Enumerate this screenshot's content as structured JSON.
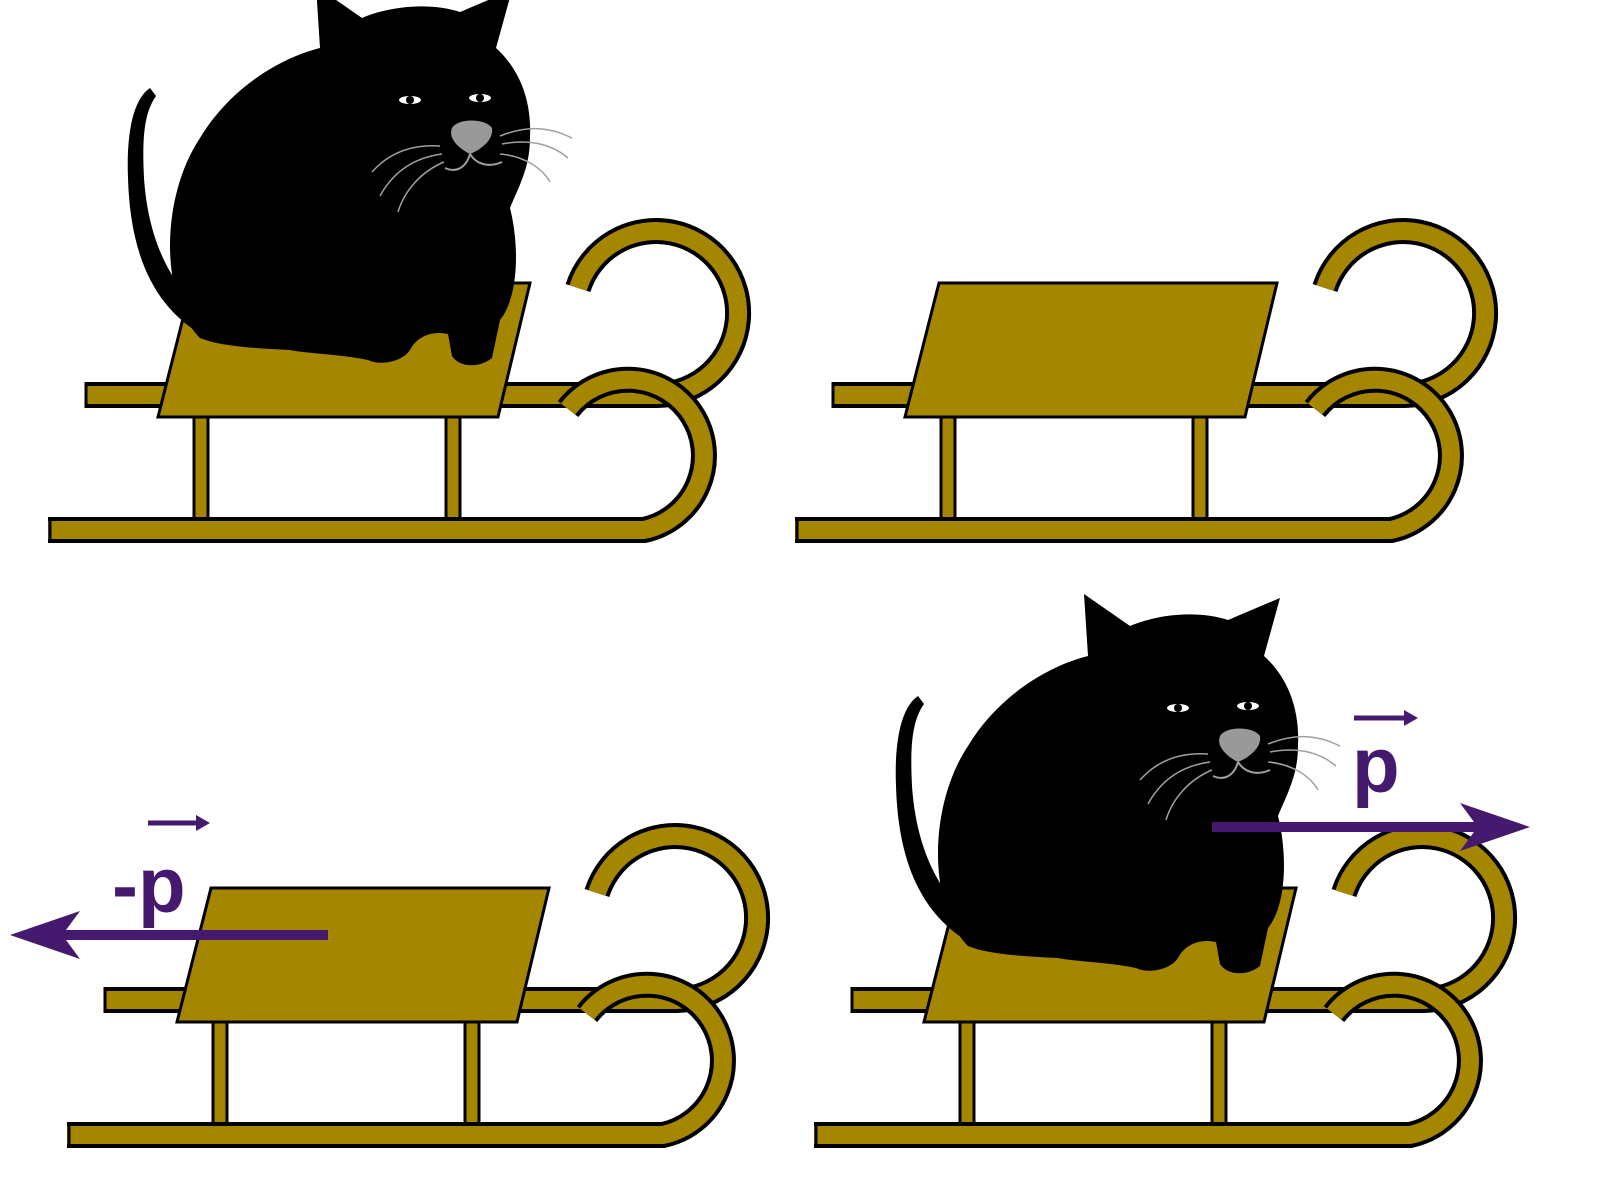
{
  "colors": {
    "sled": "#a58600",
    "outline": "#000000",
    "cat": "#000000",
    "nose": "#999999",
    "whisker": "#a0a0a0",
    "vector": "#45196e",
    "background": "#ffffff"
  },
  "panels": [
    {
      "id": "sled-with-cat",
      "has_cat": true,
      "arrow": null
    },
    {
      "id": "empty-sled",
      "has_cat": false,
      "arrow": null
    },
    {
      "id": "empty-sled-recoil",
      "has_cat": false,
      "arrow": "left"
    },
    {
      "id": "sled-with-cat-jumping",
      "has_cat": true,
      "arrow": "right"
    }
  ],
  "vectors": {
    "negative_momentum_label": "-p",
    "momentum_label": "p"
  },
  "icons": [
    "cat-icon",
    "sled-icon",
    "arrow-left-icon",
    "arrow-right-icon"
  ]
}
